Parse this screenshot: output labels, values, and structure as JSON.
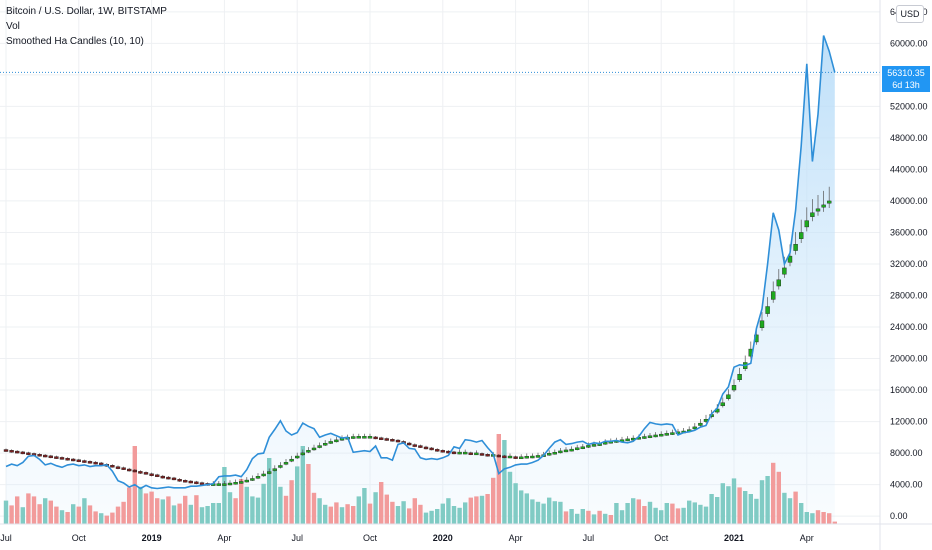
{
  "legend": {
    "title": "Bitcoin / U.S. Dollar, 1W, BITSTAMP",
    "vol": "Vol",
    "indicator": "Smoothed Ha Candles (10, 10)"
  },
  "currency_button": "USD",
  "last_price": {
    "value": "56310.35",
    "countdown": "6d 13h"
  },
  "colors": {
    "line": "#2f8fd8",
    "area": "#d6ebfb",
    "bull_candle": "#1ea81e",
    "bear_candle": "#7a1f1f",
    "vol_up": "#80cbc4",
    "vol_down": "#f29b9b",
    "grid": "#eef0f3",
    "axis_text": "#131722"
  },
  "chart_data": {
    "type": "line",
    "y_axis": {
      "ticks": [
        "64000.00",
        "60000.00",
        "56000.00",
        "52000.00",
        "48000.00",
        "44000.00",
        "40000.00",
        "36000.00",
        "32000.00",
        "28000.00",
        "24000.00",
        "20000.00",
        "16000.00",
        "12000.00",
        "8000.00",
        "4000.00",
        "0.00"
      ],
      "ylim": [
        -1000,
        65500
      ]
    },
    "x_axis": {
      "labels": [
        "Jul",
        "Oct",
        "2019",
        "Apr",
        "Jul",
        "Oct",
        "2020",
        "Apr",
        "Jul",
        "Oct",
        "2021",
        "Apr"
      ],
      "bold": [
        false,
        false,
        true,
        false,
        false,
        false,
        true,
        false,
        false,
        false,
        true,
        false
      ],
      "label_index": [
        0,
        13,
        26,
        39,
        52,
        65,
        78,
        91,
        104,
        117,
        130,
        143
      ]
    },
    "price_line": {
      "name": "BTCUSD",
      "values": [
        6300,
        6600,
        6400,
        6800,
        7600,
        7700,
        7200,
        6500,
        6700,
        6400,
        6200,
        6500,
        6600,
        6400,
        6500,
        6300,
        6400,
        6400,
        6500,
        5700,
        4500,
        4200,
        3700,
        4000,
        3500,
        3900,
        3600,
        3500,
        3600,
        3700,
        3600,
        3600,
        3600,
        3800,
        3800,
        3900,
        4000,
        4100,
        5000,
        5100,
        5100,
        5200,
        5000,
        5900,
        7300,
        7900,
        8000,
        10000,
        11000,
        12100,
        10800,
        10300,
        10600,
        11800,
        11400,
        11100,
        10000,
        10300,
        10500,
        10200,
        9900,
        10000,
        8100,
        8200,
        8300,
        8200,
        8900,
        7400,
        7400,
        7100,
        9100,
        9300,
        8600,
        8500,
        7400,
        7200,
        7300,
        7200,
        7400,
        7700,
        8800,
        8600,
        9700,
        9600,
        9400,
        9600,
        8700,
        7900,
        5400,
        6000,
        6200,
        6500,
        6600,
        6600,
        6800,
        7100,
        7700,
        8600,
        9400,
        9700,
        9100,
        9200,
        9400,
        9500,
        9100,
        9300,
        9200,
        9500,
        9500,
        9600,
        9400,
        9300,
        9500,
        10100,
        11100,
        11900,
        11700,
        11600,
        11700,
        11600,
        10300,
        10600,
        10700,
        10900,
        11300,
        11500,
        13000,
        13700,
        15500,
        16400,
        18900,
        19200,
        19100,
        19400,
        23800,
        26300,
        32000,
        38500,
        36300,
        32000,
        33400,
        38800,
        47000,
        57400,
        45000,
        51000,
        61000,
        59000,
        56310
      ]
    },
    "volume": {
      "name": "Vol",
      "ylim": [
        0,
        30000
      ],
      "values": [
        3900,
        3100,
        4600,
        2800,
        5100,
        4600,
        3300,
        4300,
        3900,
        2900,
        2300,
        2000,
        3300,
        2900,
        4300,
        3100,
        2100,
        1800,
        1400,
        1900,
        2900,
        3700,
        6100,
        13000,
        6200,
        5100,
        5400,
        4300,
        4100,
        4600,
        3100,
        3400,
        4700,
        3200,
        4800,
        2800,
        3000,
        3500,
        3500,
        9500,
        5300,
        4300,
        7500,
        6200,
        4600,
        4400,
        6700,
        11000,
        8900,
        6200,
        4700,
        7300,
        9600,
        13000,
        10000,
        5200,
        4300,
        3200,
        2900,
        3600,
        2800,
        3300,
        3000,
        4600,
        6000,
        3400,
        5300,
        7000,
        4900,
        3700,
        3000,
        3800,
        2600,
        4300,
        3200,
        1900,
        2200,
        2500,
        3400,
        4300,
        3000,
        2700,
        3600,
        4400,
        4600,
        4700,
        5000,
        7700,
        15000,
        14000,
        8700,
        6800,
        5600,
        5100,
        4100,
        3700,
        3400,
        4400,
        3800,
        3700,
        2100,
        2500,
        1700,
        2500,
        2200,
        1600,
        2200,
        1700,
        1500,
        3500,
        2300,
        3500,
        4300,
        4100,
        3000,
        3700,
        2700,
        2300,
        3500,
        3400,
        2600,
        2700,
        3900,
        3600,
        3200,
        2900,
        5000,
        4500,
        6800,
        6300,
        7600,
        6100,
        5500,
        5000,
        4200,
        7300,
        8000,
        10200,
        8700,
        5200,
        4300,
        5400,
        3500,
        2000,
        1800,
        2300,
        2000,
        1800,
        400
      ],
      "up": [
        true,
        false,
        false,
        true,
        false,
        false,
        false,
        true,
        false,
        false,
        true,
        false,
        true,
        false,
        true,
        false,
        false,
        true,
        false,
        false,
        false,
        false,
        false,
        false,
        true,
        false,
        false,
        false,
        true,
        false,
        true,
        false,
        false,
        true,
        false,
        true,
        true,
        true,
        true,
        true,
        true,
        false,
        false,
        true,
        true,
        true,
        true,
        true,
        true,
        true,
        false,
        false,
        true,
        true,
        false,
        false,
        true,
        true,
        false,
        false,
        true,
        false,
        false,
        true,
        true,
        false,
        true,
        false,
        false,
        false,
        true,
        true,
        false,
        false,
        false,
        true,
        true,
        true,
        true,
        true,
        true,
        true,
        true,
        false,
        false,
        true,
        false,
        false,
        false,
        true,
        true,
        true,
        true,
        true,
        true,
        true,
        true,
        true,
        true,
        true,
        false,
        true,
        true,
        true,
        false,
        true,
        false,
        true,
        false,
        true,
        true,
        true,
        true,
        false,
        false,
        true,
        true,
        true,
        true,
        false,
        false,
        true,
        true,
        true,
        true,
        true,
        true,
        true,
        true,
        true,
        true,
        false,
        true,
        true,
        true,
        true,
        true,
        false,
        false,
        true,
        true,
        false,
        true,
        true,
        true,
        false,
        false
      ]
    },
    "smoothed_ha": {
      "name": "Smoothed Ha Candles (10, 10)",
      "start_index": 0,
      "end_index": 147,
      "close": [
        8300,
        8200,
        8100,
        8000,
        7900,
        7800,
        7700,
        7600,
        7500,
        7400,
        7300,
        7200,
        7100,
        7000,
        6900,
        6800,
        6700,
        6600,
        6400,
        6300,
        6100,
        6000,
        5800,
        5700,
        5500,
        5400,
        5200,
        5100,
        4900,
        4800,
        4700,
        4500,
        4400,
        4300,
        4200,
        4100,
        4000,
        4000,
        4000,
        4000,
        4100,
        4200,
        4300,
        4500,
        4700,
        5000,
        5300,
        5600,
        6000,
        6400,
        6800,
        7200,
        7600,
        8000,
        8300,
        8600,
        8900,
        9200,
        9400,
        9600,
        9800,
        9900,
        10000,
        10000,
        10000,
        10000,
        9900,
        9800,
        9700,
        9600,
        9500,
        9300,
        9100,
        8900,
        8800,
        8600,
        8500,
        8300,
        8200,
        8100,
        8000,
        8000,
        8000,
        7900,
        7900,
        7800,
        7700,
        7700,
        7600,
        7500,
        7500,
        7400,
        7400,
        7500,
        7500,
        7600,
        7700,
        7900,
        8000,
        8200,
        8300,
        8400,
        8600,
        8700,
        8900,
        9000,
        9100,
        9300,
        9400,
        9500,
        9600,
        9700,
        9800,
        9900,
        10000,
        10100,
        10200,
        10300,
        10400,
        10500,
        10600,
        10700,
        10900,
        11300,
        11800,
        12300,
        12900,
        13600,
        14400,
        15400,
        16600,
        18000,
        19500,
        21200,
        23000,
        24800,
        26600,
        28500,
        30000,
        31500,
        33000,
        34500,
        36000,
        37500,
        38500,
        39000,
        39500,
        40000
      ],
      "open": [
        8350,
        8250,
        8150,
        8050,
        7950,
        7850,
        7750,
        7650,
        7550,
        7450,
        7350,
        7250,
        7150,
        7050,
        6950,
        6850,
        6750,
        6650,
        6500,
        6350,
        6200,
        6050,
        5900,
        5750,
        5600,
        5450,
        5300,
        5150,
        5000,
        4850,
        4750,
        4600,
        4450,
        4350,
        4250,
        4150,
        4050,
        4000,
        4000,
        4000,
        4050,
        4150,
        4250,
        4400,
        4600,
        4850,
        5150,
        5450,
        5800,
        6200,
        6600,
        7000,
        7400,
        7800,
        8150,
        8450,
        8750,
        9050,
        9300,
        9500,
        9700,
        9850,
        9950,
        10000,
        10000,
        10000,
        9950,
        9850,
        9750,
        9650,
        9550,
        9400,
        9200,
        9000,
        8850,
        8700,
        8550,
        8400,
        8250,
        8150,
        8050,
        8000,
        8000,
        7950,
        7900,
        7850,
        7750,
        7700,
        7650,
        7550,
        7500,
        7450,
        7400,
        7450,
        7500,
        7550,
        7650,
        7800,
        7950,
        8100,
        8250,
        8350,
        8500,
        8650,
        8800,
        8950,
        9050,
        9200,
        9350,
        9450,
        9550,
        9650,
        9750,
        9850,
        9950,
        10050,
        10150,
        10250,
        10350,
        10450,
        10550,
        10650,
        10800,
        11100,
        11500,
        12000,
        12600,
        13200,
        14000,
        14900,
        16000,
        17300,
        18700,
        20300,
        22100,
        23900,
        25700,
        27500,
        29200,
        30700,
        32200,
        33700,
        35200,
        36700,
        38000,
        38700,
        39200,
        39700
      ]
    }
  }
}
